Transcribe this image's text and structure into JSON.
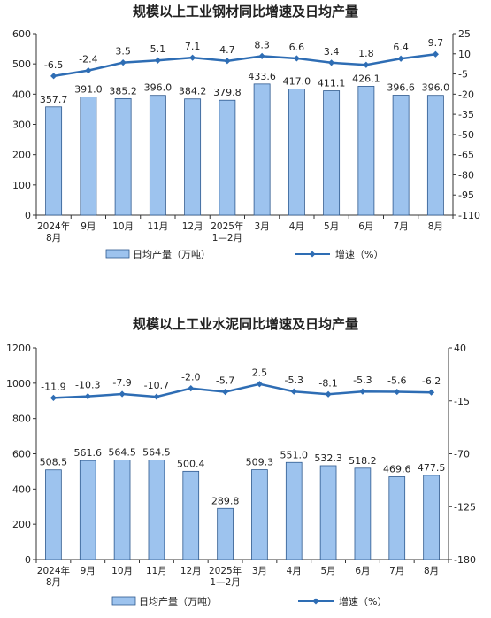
{
  "chart_data": [
    {
      "type": "bar",
      "title": "规模以上工业钢材同比增速及日均产量",
      "categories": [
        "2024年\n8月",
        "9月",
        "10月",
        "11月",
        "12月",
        "2025年\n1—2月",
        "3月",
        "4月",
        "5月",
        "6月",
        "7月",
        "8月"
      ],
      "series": [
        {
          "name": "日均产量（万吨）",
          "type": "bar",
          "axis": "left",
          "values": [
            357.7,
            391.0,
            385.2,
            396.0,
            384.2,
            379.8,
            433.6,
            417.0,
            411.1,
            426.1,
            396.6,
            396.0
          ]
        },
        {
          "name": "增速（%）",
          "type": "line",
          "axis": "right",
          "values": [
            -6.5,
            -2.4,
            3.5,
            5.1,
            7.1,
            4.7,
            8.3,
            6.6,
            3.4,
            1.8,
            6.4,
            9.7
          ]
        }
      ],
      "ylim_left": [
        0,
        600
      ],
      "yticks_left": [
        "0",
        "100",
        "200",
        "300",
        "400",
        "500",
        "600"
      ],
      "ylim_right": [
        -110,
        25
      ],
      "yticks_right": [
        "-110",
        "-95",
        "-80",
        "-65",
        "-50",
        "-35",
        "-20",
        "-5",
        "10",
        "25"
      ],
      "grid": false,
      "legend": "bottom",
      "colors": {
        "bar_fill": "#9dc3ee",
        "bar_stroke": "#2f5a8f",
        "line": "#2e6db4"
      }
    },
    {
      "type": "bar",
      "title": "规模以上工业水泥同比增速及日均产量",
      "categories": [
        "2024年\n8月",
        "9月",
        "10月",
        "11月",
        "12月",
        "2025年\n1—2月",
        "3月",
        "4月",
        "5月",
        "6月",
        "7月",
        "8月"
      ],
      "series": [
        {
          "name": "日均产量（万吨）",
          "type": "bar",
          "axis": "left",
          "values": [
            508.5,
            561.6,
            564.5,
            564.5,
            500.4,
            289.8,
            509.3,
            551.0,
            532.3,
            518.2,
            469.6,
            477.5
          ]
        },
        {
          "name": "增速（%）",
          "type": "line",
          "axis": "right",
          "values": [
            -11.9,
            -10.3,
            -7.9,
            -10.7,
            -2.0,
            -5.7,
            2.5,
            -5.3,
            -8.1,
            -5.3,
            -5.6,
            -6.2
          ]
        }
      ],
      "ylim_left": [
        0,
        1200
      ],
      "yticks_left": [
        "0",
        "200",
        "400",
        "600",
        "800",
        "1000",
        "1200"
      ],
      "ylim_right": [
        -180,
        40
      ],
      "yticks_right": [
        "-180",
        "-125",
        "-70",
        "-15",
        "40"
      ],
      "grid": false,
      "legend": "bottom",
      "colors": {
        "bar_fill": "#9dc3ee",
        "bar_stroke": "#2f5a8f",
        "line": "#2e6db4"
      }
    }
  ]
}
